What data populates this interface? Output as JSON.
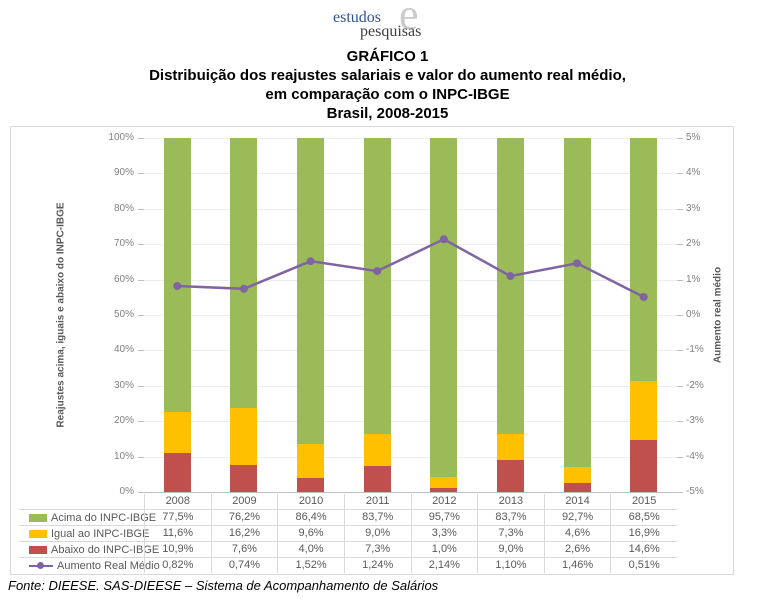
{
  "logo": {
    "estudos": "estudos",
    "big_e": "e",
    "pesquisas": "pesquisas"
  },
  "title": {
    "line1": "GRÁFICO 1",
    "line2": "Distribuição dos reajustes salariais e valor do aumento real médio,",
    "line3": "em comparação com o INPC-IBGE",
    "line4": "Brasil, 2008-2015"
  },
  "source": "Fonte: DIEESE. SAS-DIEESE – Sistema de Acompanhamento de Salários",
  "colors": {
    "acima": "#9BBB59",
    "igual": "#FFC000",
    "abaixo": "#C0504D",
    "linha": "#8064A2",
    "grid": "#EDEDED",
    "axis_line": "#BFBFBF",
    "table_border": "#D9D9D9",
    "tick_text": "#808080",
    "table_text": "#595959",
    "logo_blue": "#31538F",
    "logo_gray": "#CBCBCB"
  },
  "chart_data": {
    "type": "stacked-bar+line",
    "categories": [
      "2008",
      "2009",
      "2010",
      "2011",
      "2012",
      "2013",
      "2014",
      "2015"
    ],
    "series": [
      {
        "name": "Acima do INPC-IBGE",
        "kind": "bar",
        "color": "#9BBB59",
        "values": [
          77.5,
          76.2,
          86.4,
          83.7,
          95.7,
          83.7,
          92.7,
          68.5
        ],
        "labels": [
          "77,5%",
          "76,2%",
          "86,4%",
          "83,7%",
          "95,7%",
          "83,7%",
          "92,7%",
          "68,5%"
        ]
      },
      {
        "name": "Igual ao INPC-IBGE",
        "kind": "bar",
        "color": "#FFC000",
        "values": [
          11.6,
          16.2,
          9.6,
          9.0,
          3.3,
          7.3,
          4.6,
          16.9
        ],
        "labels": [
          "11,6%",
          "16,2%",
          "9,6%",
          "9,0%",
          "3,3%",
          "7,3%",
          "4,6%",
          "16,9%"
        ]
      },
      {
        "name": "Abaixo do INPC-IBGE",
        "kind": "bar",
        "color": "#C0504D",
        "values": [
          10.9,
          7.6,
          4.0,
          7.3,
          1.0,
          9.0,
          2.6,
          14.6
        ],
        "labels": [
          "10,9%",
          "7,6%",
          "4,0%",
          "7,3%",
          "1,0%",
          "9,0%",
          "2,6%",
          "14,6%"
        ]
      },
      {
        "name": "Aumento Real Médio",
        "kind": "line",
        "color": "#8064A2",
        "values": [
          0.82,
          0.74,
          1.52,
          1.24,
          2.14,
          1.1,
          1.46,
          0.51
        ],
        "labels": [
          "0,82%",
          "0,74%",
          "1,52%",
          "1,24%",
          "2,14%",
          "1,10%",
          "1,46%",
          "0,51%"
        ]
      }
    ],
    "stack_order_bottom_to_top": [
      "Abaixo do INPC-IBGE",
      "Igual ao INPC-IBGE",
      "Acima do INPC-IBGE"
    ],
    "left_axis": {
      "title": "Reajustes acima, iguais e abaixo do INPC-IBGE",
      "min": 0,
      "max": 100,
      "step": 10,
      "ticks_top_to_bottom": [
        "100%",
        "90%",
        "80%",
        "70%",
        "60%",
        "50%",
        "40%",
        "30%",
        "20%",
        "10%",
        "0%"
      ]
    },
    "right_axis": {
      "title": "Aumento real médio",
      "min": -5,
      "max": 5,
      "step": 1,
      "ticks_top_to_bottom": [
        "5%",
        "4%",
        "3%",
        "2%",
        "1%",
        "0%",
        "-1%",
        "-2%",
        "-3%",
        "-4%",
        "-5%"
      ]
    },
    "grid": true,
    "legend_position": "bottom table with per-year values"
  }
}
